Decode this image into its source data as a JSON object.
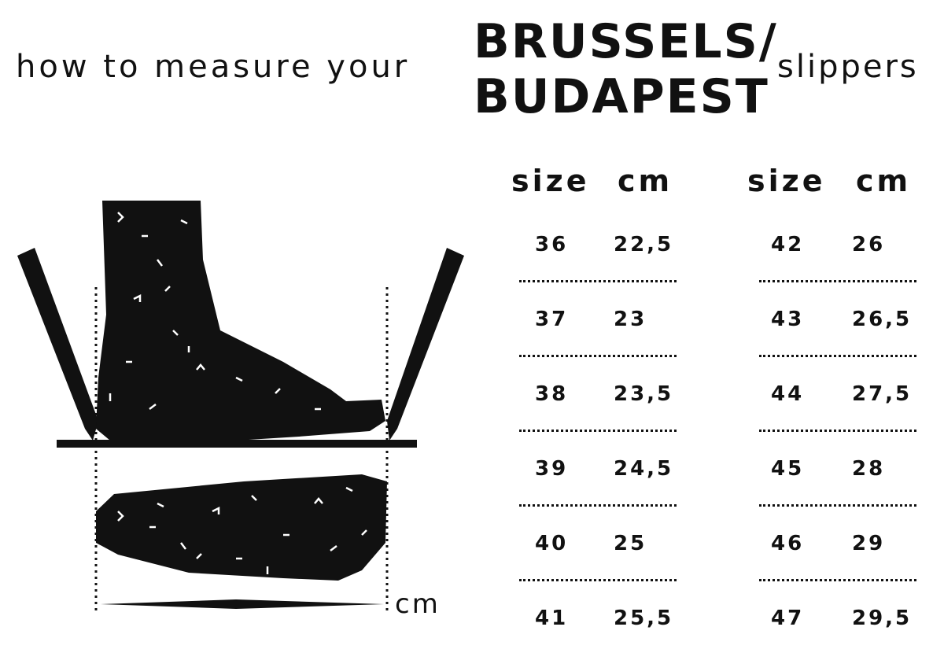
{
  "title": {
    "lead": "how to measure your",
    "model_line1": "BRUSSELS/",
    "model_line2": "BUDAPEST",
    "trail": "slippers"
  },
  "illustration": {
    "unit_label": "cm",
    "icons": [
      "pencil-icon",
      "foot-side-icon",
      "foot-top-icon",
      "ruler-line-icon"
    ]
  },
  "table": {
    "left": {
      "headers": [
        "size",
        "cm"
      ],
      "rows": [
        [
          "36",
          "22,5"
        ],
        [
          "37",
          "23"
        ],
        [
          "38",
          "23,5"
        ],
        [
          "39",
          "24,5"
        ],
        [
          "40",
          "25"
        ],
        [
          "41",
          "25,5"
        ]
      ]
    },
    "right": {
      "headers": [
        "size",
        "cm"
      ],
      "rows": [
        [
          "42",
          "26"
        ],
        [
          "43",
          "26,5"
        ],
        [
          "44",
          "27,5"
        ],
        [
          "45",
          "28"
        ],
        [
          "46",
          "29"
        ],
        [
          "47",
          "29,5"
        ]
      ]
    }
  },
  "colors": {
    "ink": "#111111",
    "background": "#ffffff"
  }
}
